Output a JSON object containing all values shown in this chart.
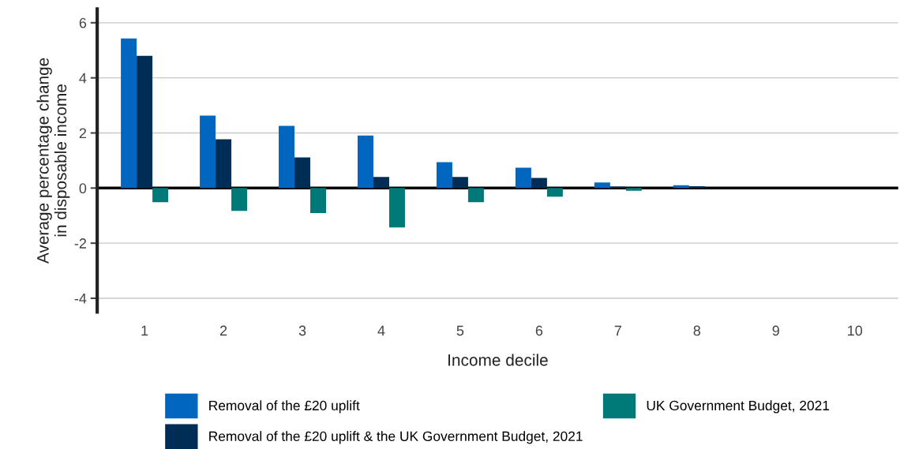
{
  "chart_data": {
    "type": "bar",
    "xlabel": "Income decile",
    "ylabel": "Average percentage change\nin disposable income",
    "categories": [
      "1",
      "2",
      "3",
      "4",
      "5",
      "6",
      "7",
      "8",
      "9",
      "10"
    ],
    "series": [
      {
        "name": "Removal of the £20 uplift",
        "color": "#0066bf",
        "values": [
          5.43,
          2.63,
          2.26,
          1.91,
          0.94,
          0.74,
          0.2,
          0.1,
          0,
          0
        ]
      },
      {
        "name": "Removal of the £20 uplift & the UK Government Budget, 2021",
        "color": "#002d55",
        "values": [
          4.8,
          1.77,
          1.11,
          0.4,
          0.4,
          0.37,
          0.05,
          0.07,
          0,
          0
        ]
      },
      {
        "name": "UK Government Budget, 2021",
        "color": "#007a78",
        "values": [
          -0.51,
          -0.83,
          -0.91,
          -1.43,
          -0.51,
          -0.31,
          -0.1,
          0,
          0,
          0
        ]
      }
    ],
    "ylim": [
      -4.5,
      6.5
    ],
    "yticks": [
      -4,
      -2,
      0,
      2,
      4,
      6
    ],
    "grid": "y",
    "legend": "bottom",
    "ref_lines": [
      {
        "axis": "y",
        "value": 0,
        "color": "#000000"
      }
    ]
  }
}
